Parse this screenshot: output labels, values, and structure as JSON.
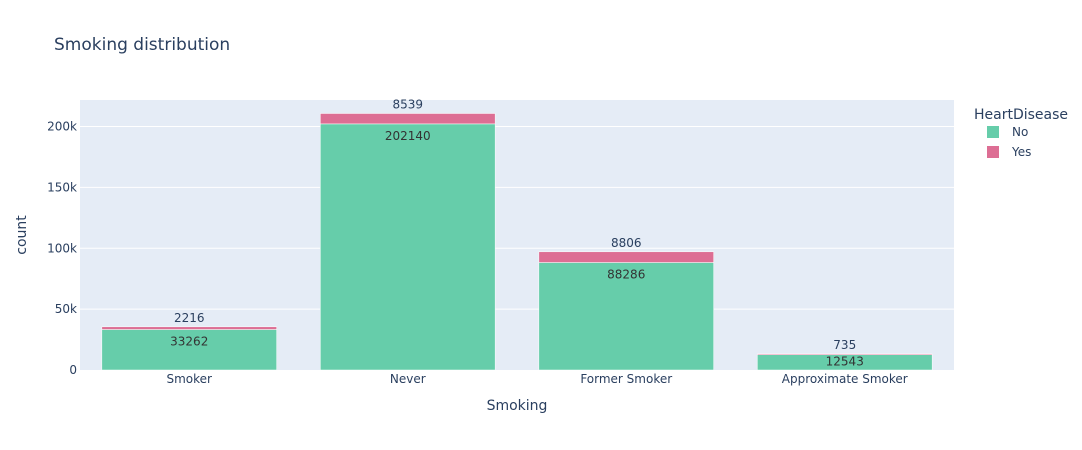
{
  "chart_data": {
    "type": "bar",
    "barmode": "stack",
    "title": "Smoking distribution",
    "xlabel": "Smoking",
    "ylabel": "count",
    "categories": [
      "Smoker",
      "Never",
      "Former Smoker",
      "Approximate Smoker"
    ],
    "series": [
      {
        "name": "No",
        "color": "#66cdaa",
        "values": [
          33262,
          202140,
          88286,
          12543
        ]
      },
      {
        "name": "Yes",
        "color": "#dd6e94",
        "values": [
          2216,
          8539,
          8806,
          735
        ]
      }
    ],
    "ylim": [
      0,
      221771
    ],
    "yticks": [
      0,
      50000,
      100000,
      150000,
      200000
    ],
    "ytick_labels": [
      "0",
      "50k",
      "100k",
      "150k",
      "200k"
    ],
    "grid": true,
    "legend": {
      "title": "HeartDisease",
      "position": "top-right"
    },
    "colors": {
      "plot_bg": "#e5ecf6",
      "grid": "#ffffff",
      "text": "#2a3f5f"
    }
  }
}
